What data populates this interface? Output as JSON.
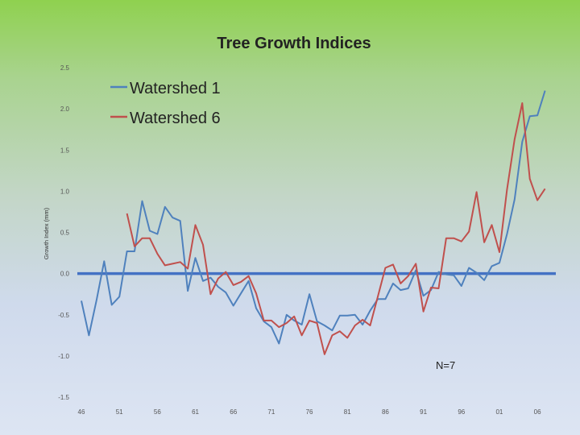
{
  "chart_data": {
    "type": "line",
    "title": "Tree Growth Indices",
    "xlabel": "",
    "ylabel": "Growth Index (mm)",
    "ylim": [
      -1.5,
      2.5
    ],
    "y_ticks": [
      "2.5",
      "2.0",
      "1.5",
      "1.0",
      "0.5",
      "0.0",
      "-0.5",
      "-1.0",
      "-1.5"
    ],
    "y_tick_values": [
      2.5,
      2.0,
      1.5,
      1.0,
      0.5,
      0.0,
      -0.5,
      -1.0,
      -1.5
    ],
    "x_ticks": [
      "46",
      "51",
      "56",
      "61",
      "66",
      "71",
      "76",
      "81",
      "86",
      "91",
      "96",
      "01",
      "06"
    ],
    "x_tick_years": [
      1946,
      1951,
      1956,
      1961,
      1966,
      1971,
      1976,
      1981,
      1986,
      1991,
      1996,
      2001,
      2006
    ],
    "xlim": [
      1946,
      2008
    ],
    "zero_line": true,
    "annotation": "N=7",
    "series": [
      {
        "name": "Watershed 1",
        "color": "#4f81bd",
        "x": [
          1946,
          1947,
          1948,
          1949,
          1950,
          1951,
          1952,
          1953,
          1954,
          1955,
          1956,
          1957,
          1958,
          1959,
          1960,
          1961,
          1962,
          1963,
          1964,
          1965,
          1966,
          1967,
          1968,
          1969,
          1970,
          1971,
          1972,
          1973,
          1974,
          1975,
          1976,
          1977,
          1978,
          1979,
          1980,
          1981,
          1982,
          1983,
          1984,
          1985,
          1986,
          1987,
          1988,
          1989,
          1990,
          1991,
          1992,
          1993,
          1994,
          1995,
          1996,
          1997,
          1998,
          1999,
          2000,
          2001,
          2002,
          2003,
          2004,
          2005,
          2006,
          2007
        ],
        "values": [
          -0.33,
          -0.75,
          -0.32,
          0.15,
          -0.38,
          -0.28,
          0.27,
          0.27,
          0.88,
          0.52,
          0.48,
          0.81,
          0.68,
          0.64,
          -0.21,
          0.19,
          -0.09,
          -0.05,
          -0.16,
          -0.23,
          -0.39,
          -0.24,
          -0.09,
          -0.42,
          -0.58,
          -0.65,
          -0.85,
          -0.5,
          -0.57,
          -0.62,
          -0.25,
          -0.58,
          -0.63,
          -0.69,
          -0.51,
          -0.51,
          -0.5,
          -0.62,
          -0.45,
          -0.31,
          -0.31,
          -0.12,
          -0.2,
          -0.18,
          0.04,
          -0.27,
          -0.2,
          0.02,
          -0.01,
          -0.02,
          -0.15,
          0.07,
          0.01,
          -0.08,
          0.09,
          0.13,
          0.48,
          0.9,
          1.6,
          1.91,
          1.92,
          2.22
        ]
      },
      {
        "name": "Watershed 6",
        "color": "#c0504d",
        "x": [
          1952,
          1953,
          1954,
          1955,
          1956,
          1957,
          1958,
          1959,
          1960,
          1961,
          1962,
          1963,
          1964,
          1965,
          1966,
          1967,
          1968,
          1969,
          1970,
          1971,
          1972,
          1973,
          1974,
          1975,
          1976,
          1977,
          1978,
          1979,
          1980,
          1981,
          1982,
          1983,
          1984,
          1985,
          1986,
          1987,
          1988,
          1989,
          1990,
          1991,
          1992,
          1993,
          1994,
          1995,
          1996,
          1997,
          1998,
          1999,
          2000,
          2001,
          2002,
          2003,
          2004,
          2005,
          2006,
          2007
        ],
        "values": [
          0.73,
          0.33,
          0.43,
          0.43,
          0.24,
          0.1,
          0.12,
          0.14,
          0.06,
          0.59,
          0.35,
          -0.25,
          -0.06,
          0.02,
          -0.14,
          -0.1,
          -0.03,
          -0.24,
          -0.57,
          -0.57,
          -0.65,
          -0.6,
          -0.52,
          -0.75,
          -0.57,
          -0.6,
          -0.98,
          -0.75,
          -0.7,
          -0.78,
          -0.63,
          -0.56,
          -0.63,
          -0.28,
          0.07,
          0.11,
          -0.12,
          -0.03,
          0.12,
          -0.46,
          -0.17,
          -0.18,
          0.43,
          0.43,
          0.39,
          0.51,
          0.99,
          0.38,
          0.59,
          0.26,
          1.02,
          1.63,
          2.07,
          1.15,
          0.89,
          1.03
        ]
      }
    ]
  }
}
